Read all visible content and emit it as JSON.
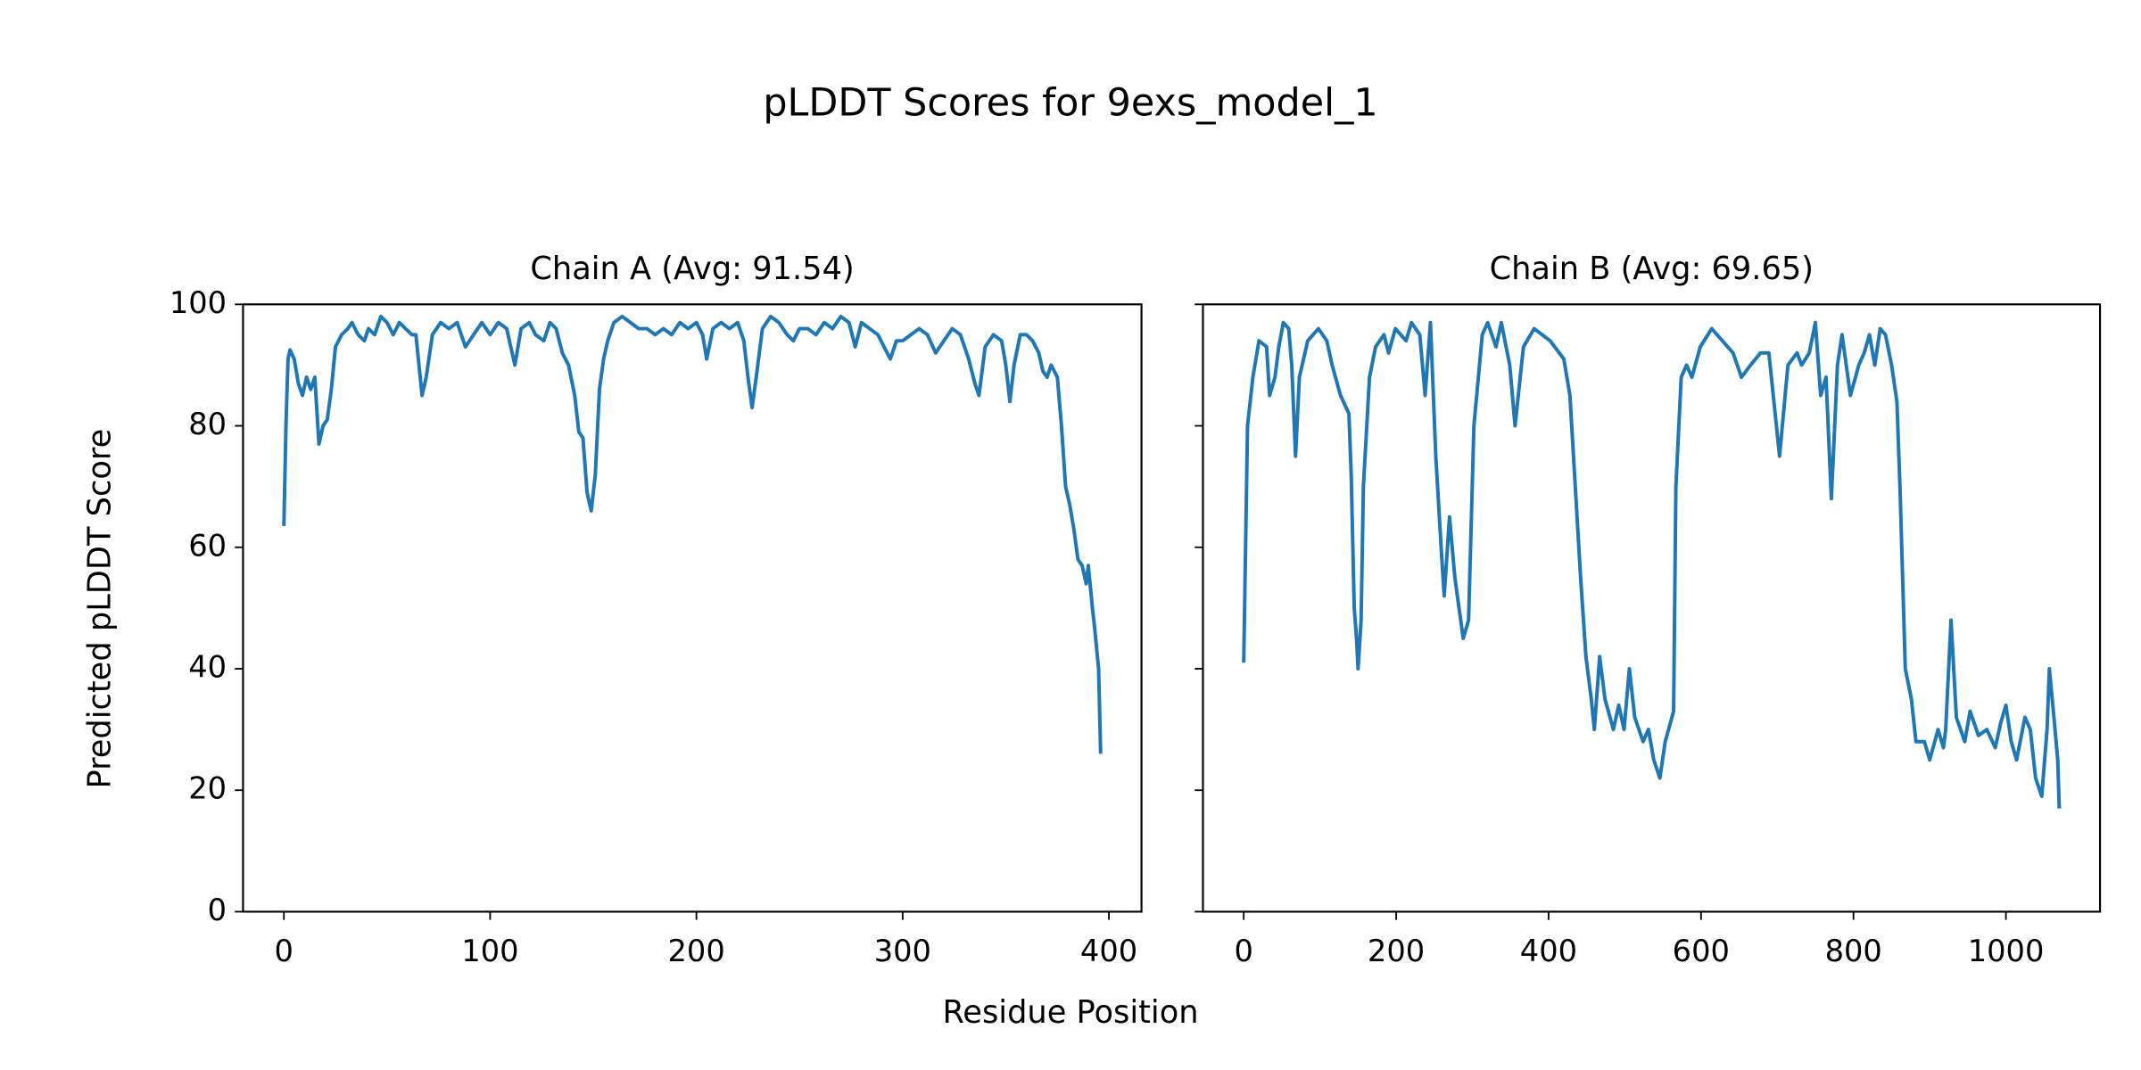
{
  "title": "pLDDT Scores for 9exs_model_1",
  "xlabel": "Residue Position",
  "ylabel": "Predicted pLDDT Score",
  "chart_data": [
    {
      "type": "line",
      "title": "Chain A (Avg: 91.54)",
      "x": [
        0,
        1,
        2,
        3,
        5,
        7,
        9,
        11,
        13,
        15,
        17,
        19,
        21,
        23,
        25,
        28,
        31,
        33,
        36,
        39,
        41,
        44,
        47,
        50,
        53,
        56,
        59,
        62,
        64,
        67,
        69,
        72,
        76,
        80,
        84,
        88,
        92,
        96,
        100,
        104,
        108,
        110,
        112,
        115,
        119,
        122,
        126,
        129,
        132,
        135,
        138,
        141,
        143,
        145,
        147,
        149,
        151,
        153,
        155,
        157,
        160,
        164,
        168,
        172,
        176,
        180,
        184,
        188,
        192,
        196,
        200,
        203,
        205,
        208,
        212,
        216,
        220,
        223,
        225,
        227,
        229,
        232,
        236,
        240,
        244,
        247,
        250,
        254,
        258,
        262,
        266,
        270,
        274,
        277,
        280,
        284,
        288,
        291,
        294,
        297,
        300,
        304,
        308,
        312,
        316,
        320,
        324,
        328,
        332,
        335,
        337,
        340,
        344,
        348,
        350,
        352,
        354,
        357,
        360,
        363,
        366,
        368,
        370,
        372,
        375,
        377,
        379,
        381,
        383,
        385,
        387,
        389,
        390,
        392,
        393,
        395,
        396
      ],
      "series": [
        {
          "color": "#1f77b4",
          "values": [
            63.5,
            80,
            91,
            92.5,
            91,
            87,
            85,
            88,
            86,
            88,
            77,
            80,
            81,
            86,
            93,
            95,
            96,
            97,
            95,
            94,
            96,
            95,
            98,
            97,
            95,
            97,
            96,
            95,
            95,
            85,
            88,
            95,
            97,
            96,
            97,
            93,
            95,
            97,
            95,
            97,
            96,
            93,
            90,
            96,
            97,
            95,
            94,
            97,
            96,
            92,
            90,
            85,
            79,
            78,
            69,
            66,
            72,
            86,
            91,
            94,
            97,
            98,
            97,
            96,
            96,
            95,
            96,
            95,
            97,
            96,
            97,
            95,
            91,
            96,
            97,
            96,
            97,
            94,
            88,
            83,
            88,
            96,
            98,
            97,
            95,
            94,
            96,
            96,
            95,
            97,
            96,
            98,
            97,
            93,
            97,
            96,
            95,
            93,
            91,
            94,
            94,
            95,
            96,
            95,
            92,
            94,
            96,
            95,
            91,
            87,
            85,
            93,
            95,
            94,
            90,
            84,
            90,
            95,
            95,
            94,
            92,
            89,
            88,
            90,
            88,
            80,
            70,
            67,
            63,
            58,
            57,
            54,
            57,
            50,
            47,
            40,
            26
          ]
        }
      ],
      "xlim": [
        -19.8,
        415.8
      ],
      "xticks": [
        0,
        100,
        200,
        300,
        400
      ],
      "ylim": [
        0,
        100
      ],
      "yticks": [
        0,
        20,
        40,
        60,
        80,
        100
      ]
    },
    {
      "type": "line",
      "title": "Chain B (Avg: 69.65)",
      "x": [
        0,
        5,
        12,
        20,
        30,
        34,
        41,
        46,
        52,
        59,
        63,
        68,
        73,
        84,
        98,
        109,
        116,
        127,
        138,
        141,
        145,
        148,
        150,
        154,
        157,
        165,
        173,
        184,
        190,
        199,
        213,
        220,
        231,
        238,
        245,
        252,
        259,
        263,
        270,
        277,
        288,
        295,
        302,
        313,
        320,
        331,
        338,
        349,
        356,
        367,
        381,
        402,
        420,
        428,
        435,
        442,
        449,
        456,
        460,
        467,
        474,
        485,
        492,
        499,
        506,
        513,
        524,
        531,
        538,
        546,
        553,
        564,
        567,
        574,
        581,
        588,
        599,
        614,
        628,
        642,
        653,
        665,
        678,
        689,
        703,
        714,
        726,
        732,
        742,
        750,
        757,
        764,
        771,
        779,
        785,
        796,
        807,
        814,
        821,
        828,
        835,
        842,
        850,
        857,
        861,
        868,
        876,
        882,
        893,
        900,
        911,
        918,
        921,
        928,
        935,
        946,
        953,
        964,
        975,
        986,
        993,
        1000,
        1007,
        1014,
        1025,
        1032,
        1039,
        1047,
        1054,
        1057,
        1063,
        1068,
        1070
      ],
      "series": [
        {
          "color": "#1f77b4",
          "values": [
            41,
            80,
            88,
            94,
            93,
            85,
            88,
            93,
            97,
            96,
            90,
            75,
            88,
            94,
            96,
            94,
            90,
            85,
            82,
            72,
            50,
            45,
            40,
            48,
            70,
            88,
            93,
            95,
            92,
            96,
            94,
            97,
            95,
            85,
            97,
            75,
            60,
            52,
            65,
            55,
            45,
            48,
            80,
            95,
            97,
            93,
            97,
            90,
            80,
            93,
            96,
            94,
            91,
            85,
            70,
            55,
            42,
            35,
            30,
            42,
            35,
            30,
            34,
            30,
            40,
            32,
            28,
            30,
            25,
            22,
            28,
            33,
            70,
            88,
            90,
            88,
            93,
            96,
            94,
            92,
            88,
            90,
            92,
            92,
            75,
            90,
            92,
            90,
            92,
            97,
            85,
            88,
            68,
            90,
            95,
            85,
            90,
            92,
            95,
            90,
            96,
            95,
            90,
            84,
            70,
            40,
            35,
            28,
            28,
            25,
            30,
            27,
            30,
            48,
            32,
            28,
            33,
            29,
            30,
            27,
            31,
            34,
            28,
            25,
            32,
            30,
            22,
            19,
            30,
            40,
            32,
            25,
            17
          ]
        }
      ],
      "xlim": [
        -53.5,
        1123.5
      ],
      "xticks": [
        0,
        200,
        400,
        600,
        800,
        1000
      ],
      "ylim": [
        0,
        100
      ]
    }
  ]
}
